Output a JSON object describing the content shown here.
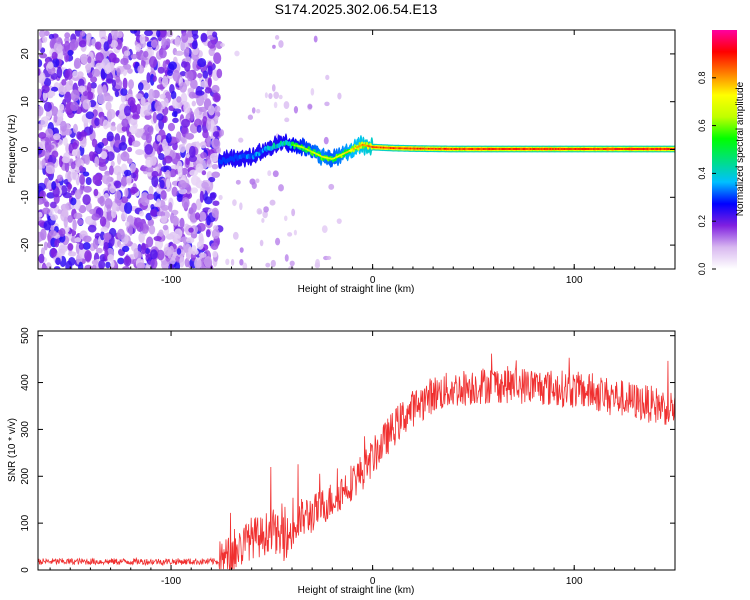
{
  "figure_title": "S174.2025.302.06.54.E13",
  "chart_data": [
    {
      "type": "heatmap",
      "title": "S174.2025.302.06.54.E13",
      "xlabel": "Height of straight line (km)",
      "ylabel": "Frequency (Hz)",
      "xlim": [
        -166,
        150
      ],
      "ylim": [
        -25,
        25
      ],
      "xticks": [
        -100,
        0,
        100
      ],
      "yticks": [
        -20,
        -10,
        0,
        10,
        20
      ],
      "colorbar": {
        "label": "Normalized spectral amplitude",
        "range": [
          0,
          1
        ],
        "ticks": [
          "0.0",
          "0.2",
          "0.4",
          "0.6",
          "0.8"
        ],
        "colors": [
          "#ffffff",
          "#d8b8f0",
          "#8020e0",
          "#0000ff",
          "#00c0ff",
          "#00e080",
          "#00ff00",
          "#c0ff00",
          "#ffff00",
          "#ff8000",
          "#ff0000",
          "#ff00a0"
        ]
      },
      "noise_region": {
        "x_range": [
          -166,
          -76
        ],
        "freq_range": [
          -25,
          25
        ],
        "amplitude": "0.05-0.25"
      },
      "signal_track": {
        "x": [
          -76,
          -70,
          -65,
          -60,
          -55,
          -50,
          -45,
          -40,
          -35,
          -30,
          -25,
          -20,
          -15,
          -10,
          -5,
          0,
          10,
          20,
          40,
          60,
          80,
          100,
          120,
          150
        ],
        "frequency": [
          -2.5,
          -2.0,
          -1.5,
          -1.5,
          -0.5,
          0.5,
          1.5,
          1.0,
          0.5,
          -0.5,
          -1.5,
          -2.0,
          -1.0,
          0.0,
          1.0,
          0.5,
          0.3,
          0.2,
          0.1,
          0.1,
          0.1,
          0.1,
          0.1,
          0.1
        ],
        "amplitude": [
          0.25,
          0.3,
          0.35,
          0.4,
          0.45,
          0.5,
          0.55,
          0.6,
          0.65,
          0.7,
          0.75,
          0.7,
          0.75,
          0.8,
          0.85,
          0.9,
          0.9,
          0.92,
          0.92,
          0.93,
          0.93,
          0.93,
          0.94,
          0.94
        ]
      }
    },
    {
      "type": "line",
      "xlabel": "Height of straight line (km)",
      "ylabel": "SNR (10 * v/v)",
      "xlim": [
        -166,
        150
      ],
      "ylim": [
        0,
        510
      ],
      "xticks": [
        -100,
        0,
        100
      ],
      "yticks": [
        0,
        100,
        200,
        300,
        400,
        500
      ],
      "series": [
        {
          "name": "SNR",
          "color": "#f03030",
          "x": [
            -166,
            -150,
            -130,
            -110,
            -90,
            -76,
            -70,
            -65,
            -60,
            -55,
            -50,
            -45,
            -40,
            -35,
            -30,
            -25,
            -20,
            -15,
            -10,
            -5,
            0,
            5,
            10,
            15,
            20,
            25,
            30,
            40,
            50,
            60,
            70,
            80,
            90,
            100,
            110,
            120,
            130,
            140,
            150
          ],
          "y": [
            18,
            18,
            18,
            18,
            18,
            18,
            30,
            50,
            70,
            70,
            90,
            60,
            80,
            110,
            120,
            135,
            150,
            170,
            190,
            210,
            240,
            270,
            300,
            325,
            345,
            360,
            375,
            385,
            392,
            396,
            395,
            392,
            388,
            385,
            378,
            370,
            360,
            352,
            345
          ]
        }
      ]
    }
  ]
}
